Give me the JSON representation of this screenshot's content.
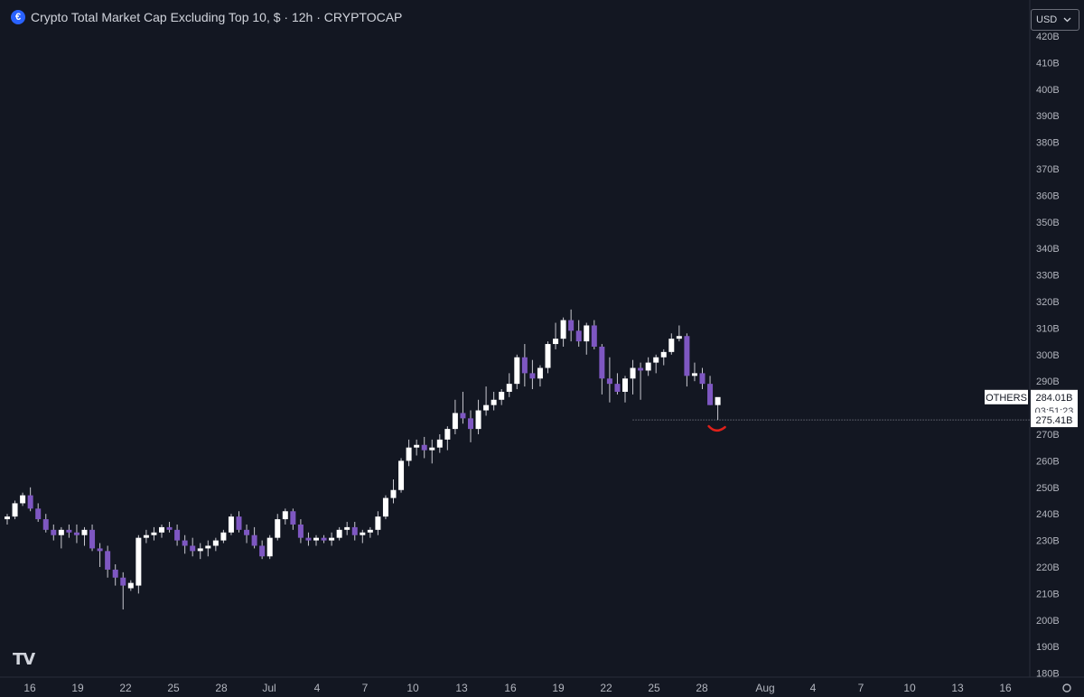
{
  "header": {
    "symbol_icon": "coin-icon",
    "title": "Crypto Total Market Cap Excluding Top 10, $ · 12h · CRYPTOCAP"
  },
  "currency": {
    "label": "USD",
    "icon": "chevron-down-icon"
  },
  "logo": {
    "text": "TV",
    "icon": "tradingview-logo-icon"
  },
  "colors": {
    "background": "#131722",
    "up": "#ffffff",
    "down": "#7e57c2",
    "wick": "#c8c8d0",
    "annotation": "#e0201a"
  },
  "chart_data": {
    "type": "candlestick",
    "title": "Crypto Total Market Cap Excluding Top 10, $ · 12h · CRYPTOCAP",
    "interval": "12h",
    "ylim": [
      175,
      421
    ],
    "y_ticks": [
      "180B",
      "190B",
      "200B",
      "210B",
      "220B",
      "230B",
      "240B",
      "250B",
      "260B",
      "270B",
      "280B",
      "290B",
      "300B",
      "310B",
      "320B",
      "330B",
      "340B",
      "350B",
      "360B",
      "370B",
      "380B",
      "390B",
      "400B",
      "410B",
      "420B"
    ],
    "x_ticks": [
      "16",
      "19",
      "22",
      "25",
      "28",
      "Jul",
      "4",
      "7",
      "10",
      "13",
      "16",
      "19",
      "22",
      "25",
      "28",
      "Aug",
      "4",
      "7",
      "10",
      "13",
      "16"
    ],
    "grid": false,
    "series_label": "OTHERS",
    "last_price": "284.01B",
    "countdown": "03:51:23",
    "support_level": 275.41,
    "support_label": "275.41B",
    "candles": [
      [
        238,
        240,
        236,
        239
      ],
      [
        239,
        245,
        238,
        244
      ],
      [
        244,
        248,
        243,
        247
      ],
      [
        247,
        250,
        241,
        242
      ],
      [
        242,
        244,
        237,
        238
      ],
      [
        238,
        240,
        233,
        234
      ],
      [
        234,
        236,
        230,
        232
      ],
      [
        232,
        235,
        227,
        234
      ],
      [
        234,
        236,
        231,
        233
      ],
      [
        233,
        236,
        229,
        232
      ],
      [
        232,
        235,
        228,
        234
      ],
      [
        234,
        236,
        226,
        227
      ],
      [
        227,
        229,
        220,
        226
      ],
      [
        226,
        228,
        216,
        219
      ],
      [
        219,
        221,
        213,
        216
      ],
      [
        216,
        218,
        204,
        213
      ],
      [
        212,
        215,
        211,
        214
      ],
      [
        213,
        232,
        210,
        231
      ],
      [
        231,
        234,
        229,
        232
      ],
      [
        232,
        235,
        230,
        233
      ],
      [
        233,
        236,
        231,
        235
      ],
      [
        235,
        237,
        233,
        234
      ],
      [
        234,
        236,
        228,
        230
      ],
      [
        230,
        232,
        225,
        228
      ],
      [
        228,
        231,
        224,
        226
      ],
      [
        226,
        229,
        223,
        227
      ],
      [
        227,
        230,
        224,
        228
      ],
      [
        228,
        231,
        226,
        230
      ],
      [
        230,
        234,
        229,
        233
      ],
      [
        233,
        240,
        232,
        239
      ],
      [
        239,
        241,
        233,
        234
      ],
      [
        234,
        236,
        229,
        232
      ],
      [
        232,
        235,
        227,
        228
      ],
      [
        228,
        230,
        223,
        224
      ],
      [
        224,
        232,
        223,
        231
      ],
      [
        231,
        240,
        230,
        238
      ],
      [
        238,
        242,
        236,
        241
      ],
      [
        241,
        242,
        234,
        236
      ],
      [
        236,
        238,
        229,
        231
      ],
      [
        231,
        233,
        228,
        230
      ],
      [
        230,
        232,
        228,
        231
      ],
      [
        231,
        232,
        229,
        230
      ],
      [
        230,
        233,
        228,
        231
      ],
      [
        231,
        235,
        230,
        234
      ],
      [
        234,
        237,
        232,
        235
      ],
      [
        235,
        237,
        230,
        232
      ],
      [
        232,
        234,
        229,
        233
      ],
      [
        233,
        235,
        231,
        234
      ],
      [
        234,
        241,
        232,
        239
      ],
      [
        239,
        247,
        238,
        246
      ],
      [
        246,
        253,
        244,
        249
      ],
      [
        249,
        261,
        248,
        260
      ],
      [
        260,
        268,
        258,
        265
      ],
      [
        265,
        268,
        262,
        266
      ],
      [
        266,
        269,
        261,
        264
      ],
      [
        264,
        268,
        259,
        265
      ],
      [
        265,
        270,
        263,
        268
      ],
      [
        268,
        273,
        264,
        272
      ],
      [
        272,
        283,
        270,
        278
      ],
      [
        278,
        286,
        274,
        276
      ],
      [
        276,
        279,
        267,
        272
      ],
      [
        272,
        283,
        270,
        279
      ],
      [
        279,
        288,
        277,
        281
      ],
      [
        281,
        286,
        279,
        283
      ],
      [
        283,
        287,
        281,
        286
      ],
      [
        286,
        293,
        284,
        289
      ],
      [
        289,
        300,
        287,
        299
      ],
      [
        299,
        304,
        288,
        293
      ],
      [
        293,
        298,
        287,
        291
      ],
      [
        291,
        296,
        288,
        295
      ],
      [
        295,
        305,
        293,
        304
      ],
      [
        304,
        312,
        302,
        306
      ],
      [
        306,
        314,
        303,
        313
      ],
      [
        313,
        317,
        305,
        309
      ],
      [
        309,
        313,
        303,
        305
      ],
      [
        305,
        312,
        300,
        311
      ],
      [
        311,
        313,
        302,
        303
      ],
      [
        303,
        304,
        285,
        291
      ],
      [
        291,
        299,
        282,
        289
      ],
      [
        289,
        293,
        285,
        286
      ],
      [
        286,
        292,
        282,
        291
      ],
      [
        291,
        298,
        285,
        295
      ],
      [
        295,
        297,
        283,
        294
      ],
      [
        294,
        299,
        292,
        297
      ],
      [
        297,
        300,
        293,
        299
      ],
      [
        299,
        302,
        296,
        301
      ],
      [
        301,
        308,
        300,
        306
      ],
      [
        306,
        311,
        305,
        307
      ],
      [
        307,
        308,
        288,
        292
      ],
      [
        292,
        297,
        290,
        293
      ],
      [
        293,
        295,
        287,
        289
      ],
      [
        289,
        292,
        281,
        281
      ],
      [
        281,
        282,
        275.41,
        284.01
      ]
    ]
  }
}
